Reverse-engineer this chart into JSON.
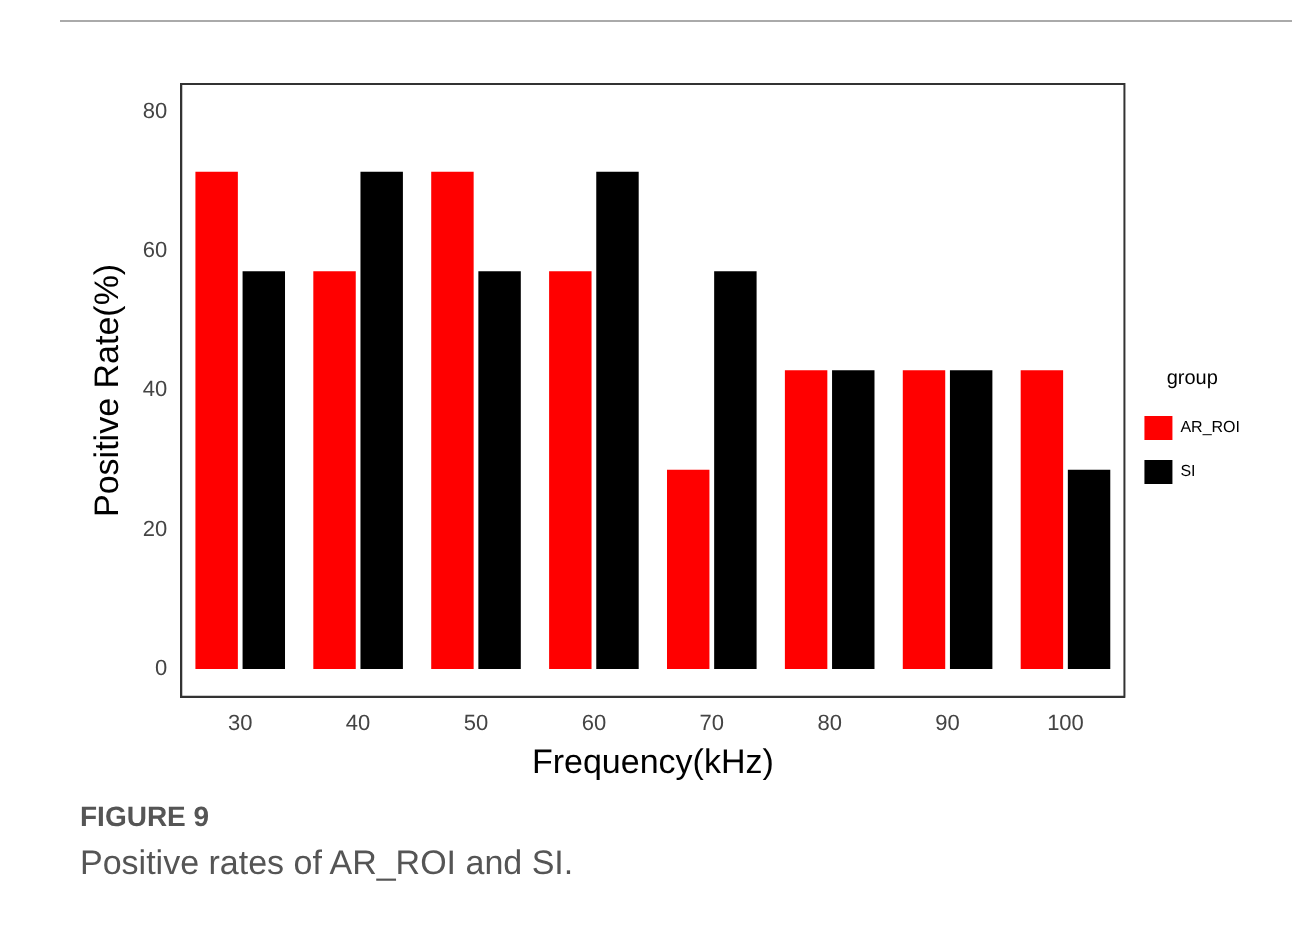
{
  "chart_data": {
    "type": "bar",
    "xlabel": "Frequency(kHz)",
    "ylabel": "Positive Rate(%)",
    "legend_title": "group",
    "categories": [
      "30",
      "40",
      "50",
      "60",
      "70",
      "80",
      "90",
      "100"
    ],
    "series": [
      {
        "name": "AR_ROI",
        "color": "#ff0000",
        "values": [
          71.4,
          57.1,
          71.4,
          57.1,
          28.6,
          42.9,
          42.9,
          42.9
        ]
      },
      {
        "name": "SI",
        "color": "#000000",
        "values": [
          57.1,
          71.4,
          57.1,
          71.4,
          57.1,
          42.9,
          42.9,
          28.6
        ]
      }
    ],
    "ylim": [
      -4,
      84
    ],
    "yticks": [
      0,
      20,
      40,
      60,
      80
    ],
    "grid": false,
    "legend": "right",
    "annotations": [
      "FIGURE 9",
      "Positive rates of AR_ROI and SI."
    ]
  }
}
